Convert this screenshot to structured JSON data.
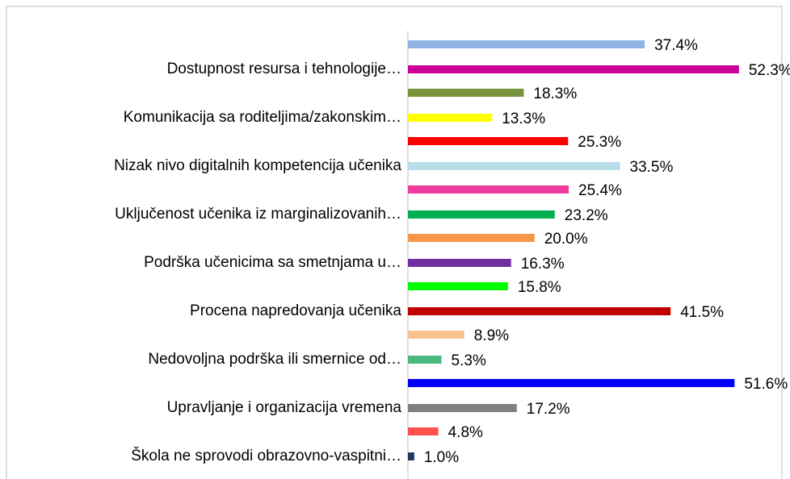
{
  "chart_data": {
    "type": "bar",
    "orientation": "horizontal",
    "categories": [
      "Dostupnost resursa i tehnologije…",
      "Komunikacija sa roditeljima/zakonskim…",
      "Nizak nivo digitalnih kompetencija učenika",
      "Uključenost učenika iz marginalizovanih…",
      "Podrška učenicima sa smetnjama u…",
      "Procena napredovanja učenika",
      "Nedovoljna podrška ili smernice od…",
      "Upravljanje i organizacija vremena",
      "Škola ne sprovodi obrazovno-vaspitni…"
    ],
    "xlim": [
      0,
      55
    ],
    "series": [
      {
        "colors": [
          "#8db4e2",
          "#77933c",
          "#ff0000",
          "#f03c9c",
          "#f79646",
          "#00ff00",
          "#fac090",
          "#0000ff",
          "#ff5050"
        ],
        "values": [
          37.4,
          18.3,
          25.3,
          25.4,
          20.0,
          15.8,
          8.9,
          51.6,
          4.8
        ],
        "value_labels": [
          "37.4%",
          "18.3%",
          "25.3%",
          "25.4%",
          "20.0%",
          "15.8%",
          "8.9%",
          "51.6%",
          "4.8%"
        ]
      },
      {
        "colors": [
          "#cc0099",
          "#ffff00",
          "#b7dde8",
          "#00b050",
          "#7030a0",
          "#c00000",
          "#4cb882",
          "#808080",
          "#1f3864"
        ],
        "values": [
          52.3,
          13.3,
          33.5,
          23.2,
          16.3,
          41.5,
          5.3,
          17.2,
          1.0
        ],
        "value_labels": [
          "52.3%",
          "13.3%",
          "33.5%",
          "23.2%",
          "16.3%",
          "41.5%",
          "5.3%",
          "17.2%",
          "1.0%"
        ]
      }
    ]
  }
}
